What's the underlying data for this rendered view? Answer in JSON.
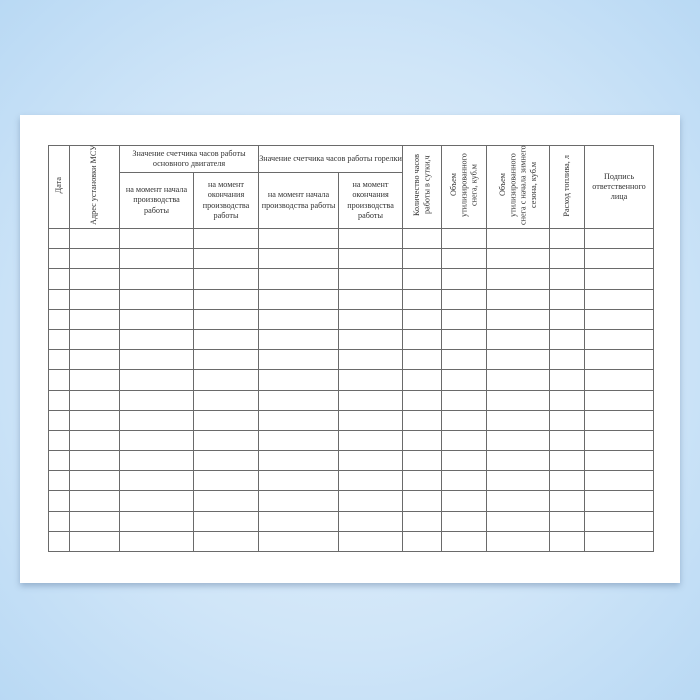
{
  "table": {
    "headers": {
      "date": "Дата",
      "address": "Адрес установки МСУ",
      "engine_group": "Значение счетчика часов работы основного двигателя",
      "burner_group": "Значение счетчика часов работы горелки",
      "start": "на момент начала производства работы",
      "end": "на момент окончания производства работы",
      "hours": "Количество часов работы в сутки,ч",
      "volume": "Объем утилизированного снега, куб.м",
      "volume_season": "Объем утилизированного снега с начала зимнего сезона, куб.м",
      "fuel": "Расход топлива, л",
      "signature": "Подпись ответственного лица"
    },
    "row_count": 16
  }
}
